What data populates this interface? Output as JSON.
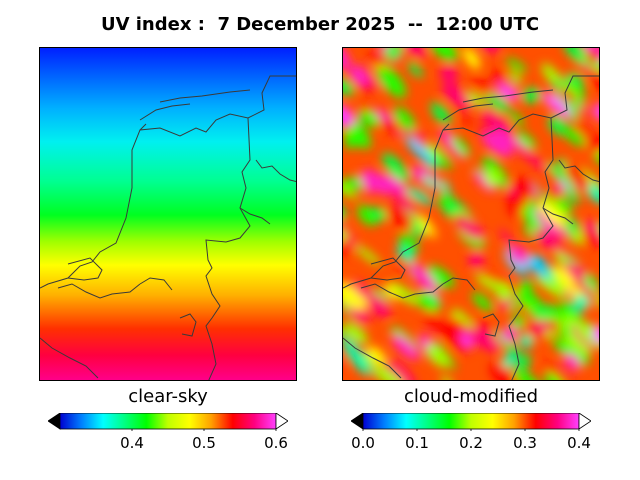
{
  "title": "UV index :  7 December 2025  --  12:00 UTC",
  "panels": [
    {
      "label": "clear-sky",
      "colorbar": {
        "min": 0.3,
        "max": 0.6,
        "extend": "both",
        "ticks": [
          "0.4",
          "0.5",
          "0.6"
        ],
        "tick_values": [
          0.4,
          0.5,
          0.6
        ]
      }
    },
    {
      "label": "cloud-modified",
      "colorbar": {
        "min": 0.0,
        "max": 0.4,
        "extend": "both",
        "ticks": [
          "0.0",
          "0.1",
          "0.2",
          "0.3",
          "0.4"
        ],
        "tick_values": [
          0.0,
          0.1,
          0.2,
          0.3,
          0.4
        ]
      }
    }
  ],
  "colormap": [
    "#000000",
    "#0000d0",
    "#0080ff",
    "#00ffff",
    "#00ff80",
    "#00ff00",
    "#c0ff00",
    "#ffff00",
    "#ffa000",
    "#ff0000",
    "#ff0080",
    "#ff40ff",
    "#ffffff"
  ],
  "colors": {
    "outline": "#3a3a3a",
    "frame": "#000000"
  }
}
